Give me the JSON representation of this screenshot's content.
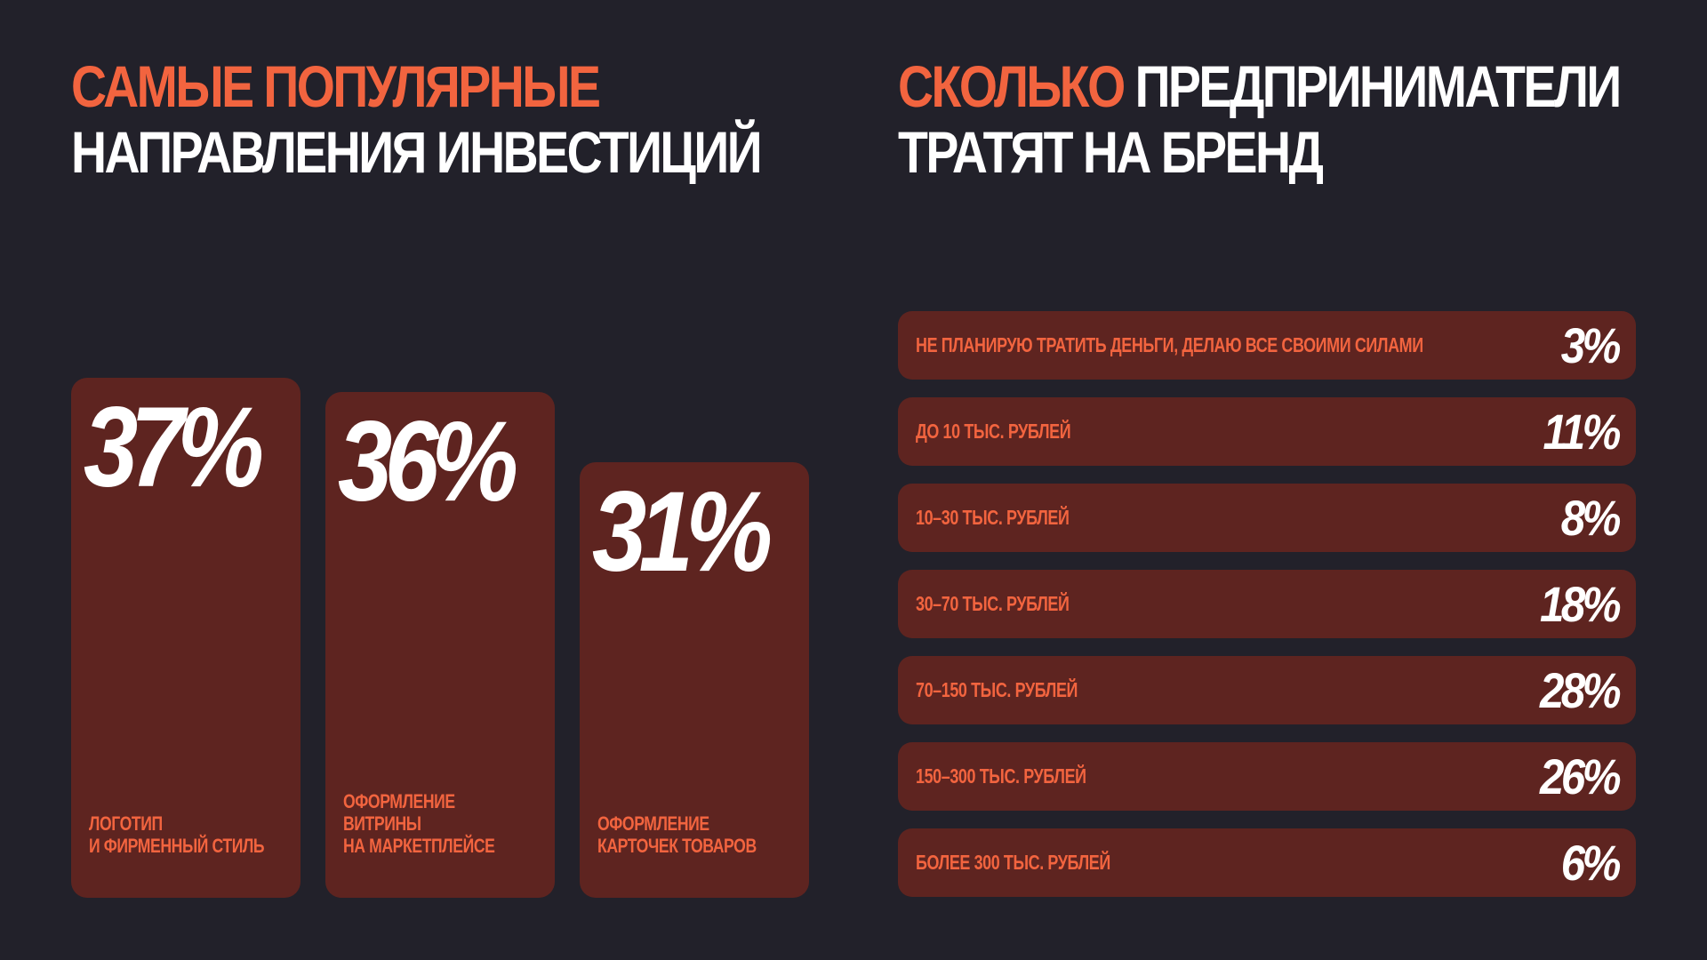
{
  "left_heading": {
    "line1": "САМЫЕ ПОПУЛЯРНЫЕ",
    "line2": "НАПРАВЛЕНИЯ ИНВЕСТИЦИЙ"
  },
  "right_heading": {
    "accent": "СКОЛЬКО",
    "line1_rest": "ПРЕДПРИНИМАТЕЛИ",
    "line2": "ТРАТЯТ НА БРЕНД"
  },
  "colors": {
    "background": "#22212a",
    "accent": "#f2643f",
    "card": "#5e2420",
    "value_text": "#ffffff"
  },
  "chart_data": [
    {
      "type": "bar",
      "categories": [
        "ЛОГОТИП\nИ ФИРМЕННЫЙ СТИЛЬ",
        "ОФОРМЛЕНИЕ\nВИТРИНЫ\nНА МАРКЕТПЛЕЙСЕ",
        "ОФОРМЛЕНИЕ\nКАРТОЧЕК ТОВАРОВ"
      ],
      "values": [
        37,
        36,
        31
      ],
      "value_labels": [
        "37%",
        "36%",
        "31%"
      ],
      "unit": "%"
    },
    {
      "type": "table",
      "rows": [
        {
          "label": "НЕ ПЛАНИРУЮ ТРАТИТЬ ДЕНЬГИ, ДЕЛАЮ ВСЕ СВОИМИ СИЛАМИ",
          "value": 3,
          "value_label": "3%"
        },
        {
          "label": "ДО 10 ТЫС. РУБЛЕЙ",
          "value": 11,
          "value_label": "11%"
        },
        {
          "label": "10–30 ТЫС. РУБЛЕЙ",
          "value": 8,
          "value_label": "8%"
        },
        {
          "label": "30–70 ТЫС. РУБЛЕЙ",
          "value": 18,
          "value_label": "18%"
        },
        {
          "label": "70–150 ТЫС. РУБЛЕЙ",
          "value": 28,
          "value_label": "28%"
        },
        {
          "label": "150–300 ТЫС. РУБЛЕЙ",
          "value": 26,
          "value_label": "26%"
        },
        {
          "label": "БОЛЕЕ 300 ТЫС. РУБЛЕЙ",
          "value": 6,
          "value_label": "6%"
        }
      ],
      "unit": "%"
    }
  ]
}
